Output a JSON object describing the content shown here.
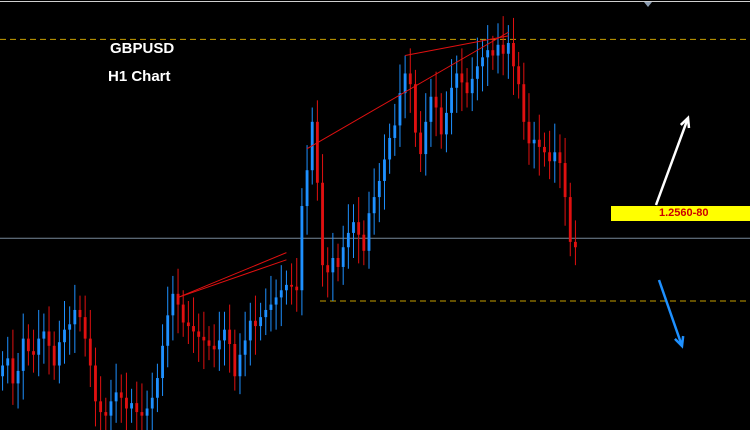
{
  "chart_data": {
    "type": "candlestick",
    "title": "GBPUSD",
    "subtitle": "H1 Chart",
    "symbol": "GBPUSD",
    "timeframe": "H1",
    "price_label": "1.2560-80",
    "colors": {
      "background": "#000000",
      "bull_candle": "#1e90ff",
      "bear_candle": "#e01010",
      "resistance_line": "#c8a000",
      "support_line": "#c8a000",
      "current_price_line": "#778899",
      "price_badge_bg": "#ffff00",
      "price_badge_text": "#cc0000",
      "up_arrow": "#ffffff",
      "down_arrow": "#1e90ff",
      "channel_lines": "#e01010"
    },
    "closes": [
      1.2496,
      1.25,
      1.2486,
      1.2493,
      1.2511,
      1.2504,
      1.2502,
      1.2511,
      1.2515,
      1.2507,
      1.2496,
      1.2509,
      1.2516,
      1.2519,
      1.2527,
      1.2523,
      1.2511,
      1.2496,
      1.2476,
      1.247,
      1.2468,
      1.2476,
      1.2481,
      1.2478,
      1.2472,
      1.2475,
      1.247,
      1.2468,
      1.2472,
      1.2478,
      1.2489,
      1.2507,
      1.2524,
      1.2536,
      1.253,
      1.252,
      1.2518,
      1.2515,
      1.2512,
      1.251,
      1.2507,
      1.2505,
      1.251,
      1.2516,
      1.2508,
      1.249,
      1.2502,
      1.251,
      1.2521,
      1.2518,
      1.2523,
      1.2527,
      1.253,
      1.2534,
      1.2538,
      1.2541,
      1.254,
      1.2538,
      1.2585,
      1.2605,
      1.2632,
      1.2598,
      1.2552,
      1.2548,
      1.2556,
      1.2551,
      1.2562,
      1.257,
      1.2576,
      1.2569,
      1.256,
      1.2581,
      1.259,
      1.2599,
      1.2611,
      1.2623,
      1.263,
      1.2648,
      1.2659,
      1.2653,
      1.2626,
      1.2614,
      1.2632,
      1.2646,
      1.264,
      1.2625,
      1.2637,
      1.2651,
      1.2659,
      1.2654,
      1.2648,
      1.2656,
      1.2663,
      1.2668,
      1.2672,
      1.2669,
      1.2675,
      1.267,
      1.2676,
      1.2663,
      1.2653,
      1.2632,
      1.262,
      1.2622,
      1.2618,
      1.2615,
      1.261,
      1.2615,
      1.2609,
      1.259,
      1.2565,
      1.2562
    ],
    "levels": {
      "resistance": 1.2678,
      "support": 1.2532,
      "current": 1.2567
    },
    "ylim": [
      1.246,
      1.27
    ],
    "xlabel": "",
    "ylabel": "",
    "grid": false
  }
}
